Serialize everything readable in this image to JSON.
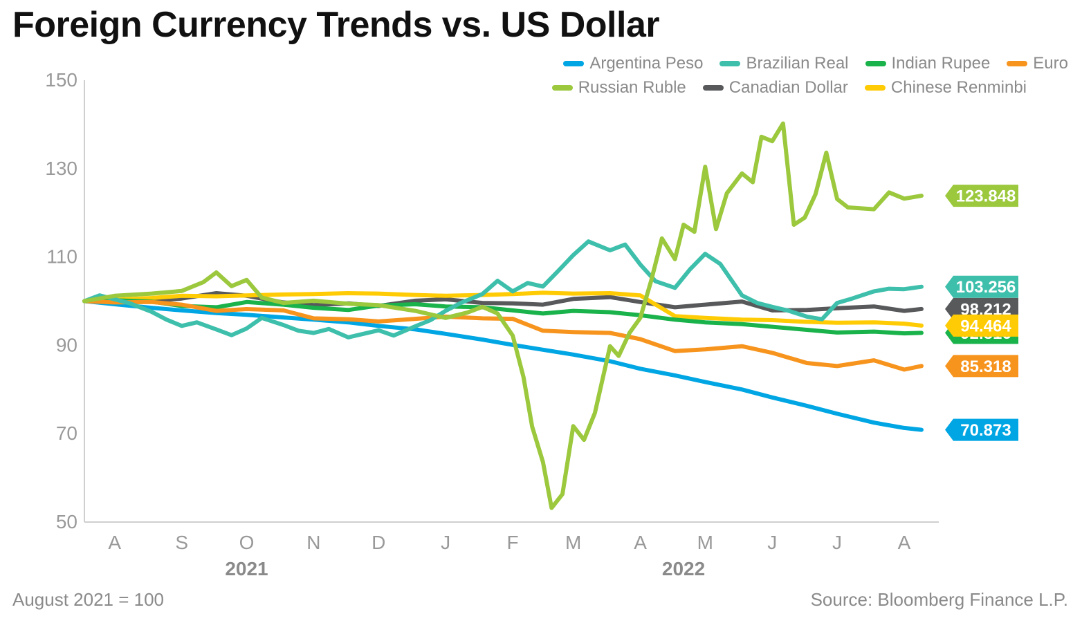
{
  "title": "Foreign Currency Trends vs. US Dollar",
  "footnote": "August 2021 = 100",
  "source": "Source: Bloomberg Finance L.P.",
  "chart_data": {
    "type": "line",
    "ylim": [
      50,
      150
    ],
    "yticks": [
      50,
      70,
      90,
      110,
      130,
      150
    ],
    "xlim": [
      "2021-08-01",
      "2022-08-31"
    ],
    "month_ticks": [
      {
        "label": "A",
        "date": "2021-08-15"
      },
      {
        "label": "S",
        "date": "2021-09-15"
      },
      {
        "label": "O",
        "date": "2021-10-15"
      },
      {
        "label": "N",
        "date": "2021-11-15"
      },
      {
        "label": "D",
        "date": "2021-12-15"
      },
      {
        "label": "J",
        "date": "2022-01-15"
      },
      {
        "label": "F",
        "date": "2022-02-15"
      },
      {
        "label": "M",
        "date": "2022-03-15"
      },
      {
        "label": "A",
        "date": "2022-04-15"
      },
      {
        "label": "M",
        "date": "2022-05-15"
      },
      {
        "label": "J",
        "date": "2022-06-15"
      },
      {
        "label": "J",
        "date": "2022-07-15"
      },
      {
        "label": "A",
        "date": "2022-08-15"
      }
    ],
    "years": [
      {
        "label": "2021",
        "date": "2021-10-15"
      },
      {
        "label": "2022",
        "date": "2022-05-05"
      }
    ],
    "series": [
      {
        "name": "Argentina Peso",
        "color": "#00a6e3",
        "end_label": "70.873",
        "points": [
          [
            "2021-08-01",
            100.0
          ],
          [
            "2021-08-15",
            99.3
          ],
          [
            "2021-09-01",
            98.5
          ],
          [
            "2021-09-15",
            97.9
          ],
          [
            "2021-10-01",
            97.3
          ],
          [
            "2021-10-15",
            96.9
          ],
          [
            "2021-11-01",
            96.3
          ],
          [
            "2021-11-15",
            95.8
          ],
          [
            "2021-12-01",
            95.2
          ],
          [
            "2021-12-15",
            94.4
          ],
          [
            "2022-01-01",
            93.6
          ],
          [
            "2022-01-15",
            92.6
          ],
          [
            "2022-02-01",
            91.3
          ],
          [
            "2022-02-15",
            90.1
          ],
          [
            "2022-03-01",
            89.0
          ],
          [
            "2022-03-15",
            87.9
          ],
          [
            "2022-04-01",
            86.4
          ],
          [
            "2022-04-15",
            84.7
          ],
          [
            "2022-05-01",
            83.2
          ],
          [
            "2022-05-15",
            81.7
          ],
          [
            "2022-06-01",
            80.0
          ],
          [
            "2022-06-15",
            78.2
          ],
          [
            "2022-07-01",
            76.3
          ],
          [
            "2022-07-15",
            74.5
          ],
          [
            "2022-08-01",
            72.5
          ],
          [
            "2022-08-15",
            71.3
          ],
          [
            "2022-08-23",
            70.873
          ]
        ]
      },
      {
        "name": "Brazilian Real",
        "color": "#3dbfab",
        "end_label": "103.256",
        "points": [
          [
            "2021-08-01",
            100.0
          ],
          [
            "2021-08-08",
            101.3
          ],
          [
            "2021-08-15",
            100.4
          ],
          [
            "2021-08-22",
            99.5
          ],
          [
            "2021-09-01",
            97.6
          ],
          [
            "2021-09-08",
            95.8
          ],
          [
            "2021-09-15",
            94.4
          ],
          [
            "2021-09-22",
            95.2
          ],
          [
            "2021-10-01",
            93.6
          ],
          [
            "2021-10-08",
            92.3
          ],
          [
            "2021-10-15",
            93.8
          ],
          [
            "2021-10-22",
            96.2
          ],
          [
            "2021-11-01",
            94.6
          ],
          [
            "2021-11-08",
            93.3
          ],
          [
            "2021-11-15",
            92.8
          ],
          [
            "2021-11-22",
            93.7
          ],
          [
            "2021-12-01",
            91.8
          ],
          [
            "2021-12-08",
            92.6
          ],
          [
            "2021-12-15",
            93.4
          ],
          [
            "2021-12-22",
            92.2
          ],
          [
            "2022-01-01",
            94.3
          ],
          [
            "2022-01-08",
            95.7
          ],
          [
            "2022-01-15",
            97.8
          ],
          [
            "2022-01-22",
            99.6
          ],
          [
            "2022-02-01",
            101.6
          ],
          [
            "2022-02-08",
            104.6
          ],
          [
            "2022-02-15",
            102.2
          ],
          [
            "2022-02-22",
            104.1
          ],
          [
            "2022-03-01",
            103.3
          ],
          [
            "2022-03-08",
            106.8
          ],
          [
            "2022-03-15",
            110.4
          ],
          [
            "2022-03-22",
            113.5
          ],
          [
            "2022-04-01",
            111.5
          ],
          [
            "2022-04-08",
            112.8
          ],
          [
            "2022-04-15",
            108.3
          ],
          [
            "2022-04-22",
            104.5
          ],
          [
            "2022-05-01",
            103.0
          ],
          [
            "2022-05-08",
            107.2
          ],
          [
            "2022-05-15",
            110.7
          ],
          [
            "2022-05-22",
            108.4
          ],
          [
            "2022-06-01",
            101.3
          ],
          [
            "2022-06-08",
            99.6
          ],
          [
            "2022-06-15",
            98.7
          ],
          [
            "2022-06-22",
            97.9
          ],
          [
            "2022-07-01",
            96.5
          ],
          [
            "2022-07-08",
            95.9
          ],
          [
            "2022-07-15",
            99.6
          ],
          [
            "2022-07-22",
            100.6
          ],
          [
            "2022-08-01",
            102.2
          ],
          [
            "2022-08-08",
            102.8
          ],
          [
            "2022-08-15",
            102.7
          ],
          [
            "2022-08-23",
            103.256
          ]
        ]
      },
      {
        "name": "Indian Rupee",
        "color": "#1ab24a",
        "end_label": "92.816",
        "points": [
          [
            "2021-08-01",
            100.0
          ],
          [
            "2021-08-15",
            100.2
          ],
          [
            "2021-09-01",
            99.9
          ],
          [
            "2021-09-15",
            98.9
          ],
          [
            "2021-10-01",
            98.6
          ],
          [
            "2021-10-15",
            99.8
          ],
          [
            "2021-11-01",
            99.2
          ],
          [
            "2021-11-15",
            98.5
          ],
          [
            "2021-12-01",
            98.0
          ],
          [
            "2021-12-15",
            99.0
          ],
          [
            "2022-01-01",
            99.3
          ],
          [
            "2022-01-15",
            98.8
          ],
          [
            "2022-02-01",
            98.6
          ],
          [
            "2022-02-15",
            97.9
          ],
          [
            "2022-03-01",
            97.2
          ],
          [
            "2022-03-15",
            97.8
          ],
          [
            "2022-04-01",
            97.5
          ],
          [
            "2022-04-15",
            96.8
          ],
          [
            "2022-05-01",
            95.8
          ],
          [
            "2022-05-15",
            95.2
          ],
          [
            "2022-06-01",
            94.8
          ],
          [
            "2022-06-15",
            94.2
          ],
          [
            "2022-07-01",
            93.5
          ],
          [
            "2022-07-15",
            92.9
          ],
          [
            "2022-08-01",
            93.1
          ],
          [
            "2022-08-15",
            92.7
          ],
          [
            "2022-08-23",
            92.816
          ]
        ]
      },
      {
        "name": "Euro",
        "color": "#f7941d",
        "end_label": "85.318",
        "points": [
          [
            "2021-08-01",
            100.0
          ],
          [
            "2021-08-15",
            99.7
          ],
          [
            "2021-09-01",
            99.8
          ],
          [
            "2021-09-15",
            99.2
          ],
          [
            "2021-10-01",
            97.8
          ],
          [
            "2021-10-15",
            98.2
          ],
          [
            "2021-11-01",
            97.9
          ],
          [
            "2021-11-15",
            96.1
          ],
          [
            "2021-12-01",
            95.9
          ],
          [
            "2021-12-15",
            95.4
          ],
          [
            "2022-01-01",
            96.0
          ],
          [
            "2022-01-15",
            96.5
          ],
          [
            "2022-02-01",
            96.1
          ],
          [
            "2022-02-15",
            96.0
          ],
          [
            "2022-03-01",
            93.3
          ],
          [
            "2022-03-15",
            93.0
          ],
          [
            "2022-04-01",
            92.8
          ],
          [
            "2022-04-15",
            91.4
          ],
          [
            "2022-05-01",
            88.7
          ],
          [
            "2022-05-15",
            89.1
          ],
          [
            "2022-06-01",
            89.8
          ],
          [
            "2022-06-15",
            88.3
          ],
          [
            "2022-07-01",
            86.0
          ],
          [
            "2022-07-15",
            85.3
          ],
          [
            "2022-08-01",
            86.6
          ],
          [
            "2022-08-15",
            84.5
          ],
          [
            "2022-08-23",
            85.318
          ]
        ]
      },
      {
        "name": "Russian Ruble",
        "color": "#9bc83c",
        "end_label": "123.848",
        "points": [
          [
            "2021-08-01",
            100.0
          ],
          [
            "2021-08-15",
            101.2
          ],
          [
            "2021-09-01",
            101.7
          ],
          [
            "2021-09-15",
            102.3
          ],
          [
            "2021-09-25",
            104.3
          ],
          [
            "2021-10-01",
            106.5
          ],
          [
            "2021-10-08",
            103.4
          ],
          [
            "2021-10-15",
            104.8
          ],
          [
            "2021-10-22",
            100.8
          ],
          [
            "2021-11-01",
            99.6
          ],
          [
            "2021-11-15",
            100.1
          ],
          [
            "2021-12-01",
            99.4
          ],
          [
            "2021-12-15",
            99.1
          ],
          [
            "2022-01-01",
            97.8
          ],
          [
            "2022-01-15",
            96.2
          ],
          [
            "2022-01-25",
            97.4
          ],
          [
            "2022-02-01",
            98.7
          ],
          [
            "2022-02-08",
            97.2
          ],
          [
            "2022-02-15",
            92.2
          ],
          [
            "2022-02-20",
            82.8
          ],
          [
            "2022-02-24",
            71.6
          ],
          [
            "2022-03-01",
            63.6
          ],
          [
            "2022-03-05",
            53.2
          ],
          [
            "2022-03-10",
            56.3
          ],
          [
            "2022-03-15",
            71.7
          ],
          [
            "2022-03-20",
            68.6
          ],
          [
            "2022-03-25",
            74.7
          ],
          [
            "2022-04-01",
            89.8
          ],
          [
            "2022-04-05",
            87.6
          ],
          [
            "2022-04-10",
            92.8
          ],
          [
            "2022-04-15",
            96.2
          ],
          [
            "2022-04-20",
            104.6
          ],
          [
            "2022-04-25",
            114.2
          ],
          [
            "2022-05-01",
            109.5
          ],
          [
            "2022-05-05",
            117.3
          ],
          [
            "2022-05-10",
            115.7
          ],
          [
            "2022-05-15",
            130.4
          ],
          [
            "2022-05-20",
            116.3
          ],
          [
            "2022-05-25",
            124.4
          ],
          [
            "2022-06-01",
            128.9
          ],
          [
            "2022-06-06",
            126.9
          ],
          [
            "2022-06-10",
            137.2
          ],
          [
            "2022-06-15",
            136.2
          ],
          [
            "2022-06-20",
            140.2
          ],
          [
            "2022-06-25",
            117.3
          ],
          [
            "2022-06-30",
            118.9
          ],
          [
            "2022-07-05",
            124.2
          ],
          [
            "2022-07-10",
            133.6
          ],
          [
            "2022-07-15",
            123.1
          ],
          [
            "2022-07-20",
            121.2
          ],
          [
            "2022-08-01",
            120.8
          ],
          [
            "2022-08-08",
            124.6
          ],
          [
            "2022-08-15",
            123.2
          ],
          [
            "2022-08-23",
            123.848
          ]
        ]
      },
      {
        "name": "Canadian Dollar",
        "color": "#58595b",
        "end_label": "98.212",
        "points": [
          [
            "2021-08-01",
            100.0
          ],
          [
            "2021-08-15",
            100.2
          ],
          [
            "2021-09-01",
            100.0
          ],
          [
            "2021-09-15",
            100.6
          ],
          [
            "2021-10-01",
            101.8
          ],
          [
            "2021-10-15",
            101.2
          ],
          [
            "2021-11-01",
            99.7
          ],
          [
            "2021-11-15",
            99.1
          ],
          [
            "2021-12-01",
            99.5
          ],
          [
            "2021-12-15",
            98.9
          ],
          [
            "2022-01-01",
            100.1
          ],
          [
            "2022-01-15",
            100.4
          ],
          [
            "2022-02-01",
            99.6
          ],
          [
            "2022-02-15",
            99.5
          ],
          [
            "2022-03-01",
            99.2
          ],
          [
            "2022-03-15",
            100.5
          ],
          [
            "2022-04-01",
            100.9
          ],
          [
            "2022-04-15",
            99.8
          ],
          [
            "2022-05-01",
            98.6
          ],
          [
            "2022-05-15",
            99.2
          ],
          [
            "2022-06-01",
            99.9
          ],
          [
            "2022-06-15",
            97.9
          ],
          [
            "2022-07-01",
            98.0
          ],
          [
            "2022-07-15",
            98.4
          ],
          [
            "2022-08-01",
            98.8
          ],
          [
            "2022-08-15",
            97.8
          ],
          [
            "2022-08-23",
            98.212
          ]
        ]
      },
      {
        "name": "Chinese Renminbi",
        "color": "#ffcb05",
        "end_label": "94.464",
        "points": [
          [
            "2021-08-01",
            100.0
          ],
          [
            "2021-08-15",
            100.3
          ],
          [
            "2021-09-01",
            100.7
          ],
          [
            "2021-09-15",
            101.2
          ],
          [
            "2021-10-01",
            101.1
          ],
          [
            "2021-10-15",
            101.3
          ],
          [
            "2021-11-01",
            101.5
          ],
          [
            "2021-11-15",
            101.6
          ],
          [
            "2021-12-01",
            101.8
          ],
          [
            "2021-12-15",
            101.7
          ],
          [
            "2022-01-01",
            101.4
          ],
          [
            "2022-01-15",
            101.2
          ],
          [
            "2022-02-01",
            101.4
          ],
          [
            "2022-02-15",
            101.6
          ],
          [
            "2022-03-01",
            101.9
          ],
          [
            "2022-03-15",
            101.7
          ],
          [
            "2022-04-01",
            101.8
          ],
          [
            "2022-04-15",
            101.3
          ],
          [
            "2022-05-01",
            96.6
          ],
          [
            "2022-05-15",
            96.2
          ],
          [
            "2022-06-01",
            95.8
          ],
          [
            "2022-06-15",
            95.7
          ],
          [
            "2022-07-01",
            95.3
          ],
          [
            "2022-07-15",
            95.1
          ],
          [
            "2022-08-01",
            95.2
          ],
          [
            "2022-08-15",
            94.9
          ],
          [
            "2022-08-23",
            94.464
          ]
        ]
      }
    ]
  }
}
